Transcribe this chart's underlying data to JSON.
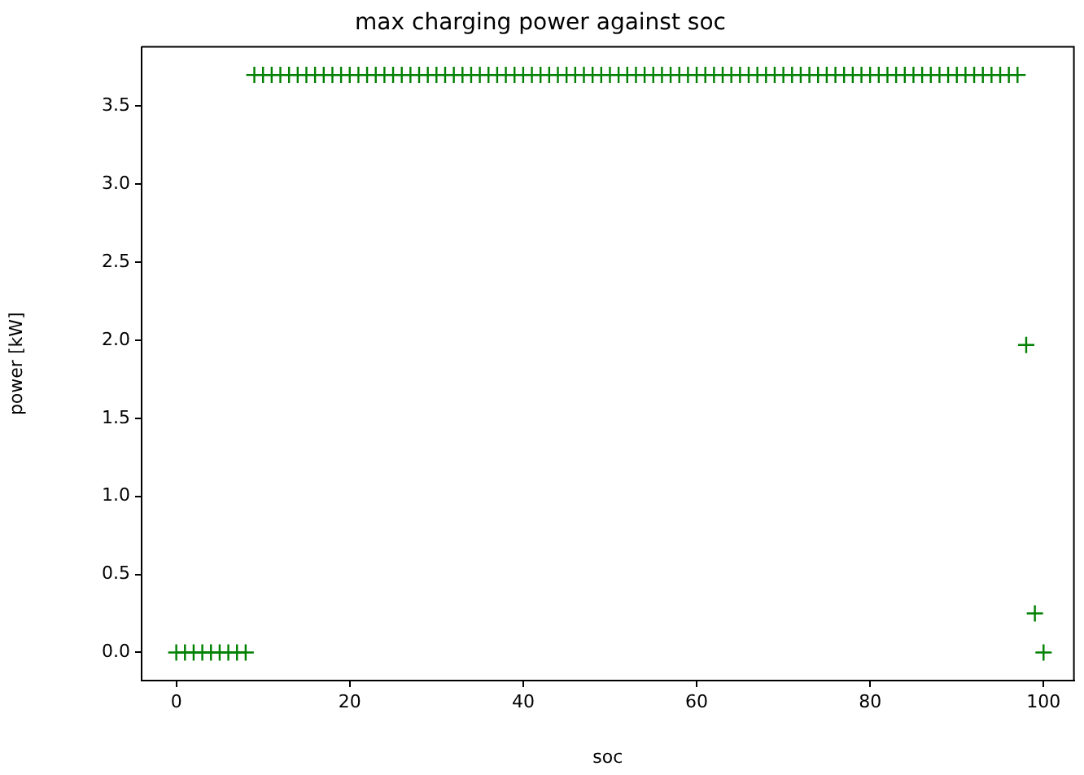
{
  "chart_data": {
    "type": "scatter",
    "title": "max charging power against soc",
    "xlabel": "soc",
    "ylabel": "power [kW]",
    "x": [
      0,
      1,
      2,
      3,
      4,
      5,
      6,
      7,
      8,
      9,
      10,
      11,
      12,
      13,
      14,
      15,
      16,
      17,
      18,
      19,
      20,
      21,
      22,
      23,
      24,
      25,
      26,
      27,
      28,
      29,
      30,
      31,
      32,
      33,
      34,
      35,
      36,
      37,
      38,
      39,
      40,
      41,
      42,
      43,
      44,
      45,
      46,
      47,
      48,
      49,
      50,
      51,
      52,
      53,
      54,
      55,
      56,
      57,
      58,
      59,
      60,
      61,
      62,
      63,
      64,
      65,
      66,
      67,
      68,
      69,
      70,
      71,
      72,
      73,
      74,
      75,
      76,
      77,
      78,
      79,
      80,
      81,
      82,
      83,
      84,
      85,
      86,
      87,
      88,
      89,
      90,
      91,
      92,
      93,
      94,
      95,
      96,
      97,
      98,
      99,
      100
    ],
    "series": [
      {
        "color": "#008000",
        "values": [
          0,
          0,
          0,
          0,
          0,
          0,
          0,
          0,
          0,
          3.7,
          3.7,
          3.7,
          3.7,
          3.7,
          3.7,
          3.7,
          3.7,
          3.7,
          3.7,
          3.7,
          3.7,
          3.7,
          3.7,
          3.7,
          3.7,
          3.7,
          3.7,
          3.7,
          3.7,
          3.7,
          3.7,
          3.7,
          3.7,
          3.7,
          3.7,
          3.7,
          3.7,
          3.7,
          3.7,
          3.7,
          3.7,
          3.7,
          3.7,
          3.7,
          3.7,
          3.7,
          3.7,
          3.7,
          3.7,
          3.7,
          3.7,
          3.7,
          3.7,
          3.7,
          3.7,
          3.7,
          3.7,
          3.7,
          3.7,
          3.7,
          3.7,
          3.7,
          3.7,
          3.7,
          3.7,
          3.7,
          3.7,
          3.7,
          3.7,
          3.7,
          3.7,
          3.7,
          3.7,
          3.7,
          3.7,
          3.7,
          3.7,
          3.7,
          3.7,
          3.7,
          3.7,
          3.7,
          3.7,
          3.7,
          3.7,
          3.7,
          3.7,
          3.7,
          3.7,
          3.7,
          3.7,
          3.7,
          3.7,
          3.7,
          3.7,
          3.7,
          3.7,
          3.7,
          1.97,
          0.25,
          0
        ]
      }
    ],
    "marker": "cross",
    "xlim": [
      -4,
      103.5
    ],
    "ylim": [
      -0.18,
      3.88
    ],
    "xticks": [
      0,
      20,
      40,
      60,
      80,
      100
    ],
    "yticks": [
      {
        "value": 0,
        "label": "0.0"
      },
      0.5,
      {
        "value": 1,
        "label": "1.0"
      },
      1.5,
      {
        "value": 2,
        "label": "2.0"
      },
      2.5,
      {
        "value": 3,
        "label": "3.0"
      },
      3.5
    ],
    "grid": false
  }
}
